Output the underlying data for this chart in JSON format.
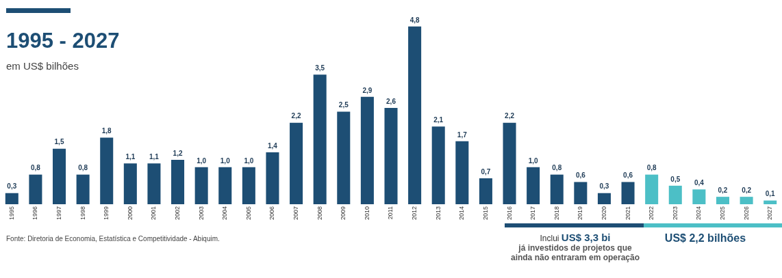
{
  "chart_data": {
    "type": "bar",
    "title": "1995 - 2027",
    "subtitle": "em US$ bilhões",
    "categories": [
      "1995",
      "1996",
      "1997",
      "1998",
      "1999",
      "2000",
      "2001",
      "2002",
      "2003",
      "2004",
      "2005",
      "2006",
      "2007",
      "2008",
      "2009",
      "2010",
      "2011",
      "2012",
      "2013",
      "2014",
      "2015",
      "2016",
      "2017",
      "2018",
      "2019",
      "2020",
      "2021",
      "2022",
      "2023",
      "2024",
      "2025",
      "2026",
      "2027"
    ],
    "values": [
      0.3,
      0.8,
      1.5,
      0.8,
      1.8,
      1.1,
      1.1,
      1.2,
      1.0,
      1.0,
      1.0,
      1.4,
      2.2,
      3.5,
      2.5,
      2.9,
      2.6,
      4.8,
      2.1,
      1.7,
      0.7,
      2.2,
      1.0,
      0.8,
      0.6,
      0.3,
      0.6,
      0.8,
      0.5,
      0.4,
      0.2,
      0.2,
      0.1
    ],
    "value_labels": [
      "0,3",
      "0,8",
      "1,5",
      "0,8",
      "1,8",
      "1,1",
      "1,1",
      "1,2",
      "1,0",
      "1,0",
      "1,0",
      "1,4",
      "2,2",
      "3,5",
      "2,5",
      "2,9",
      "2,6",
      "4,8",
      "2,1",
      "1,7",
      "0,7",
      "2,2",
      "1,0",
      "0,8",
      "0,6",
      "0,3",
      "0,6",
      "0,8",
      "0,5",
      "0,4",
      "0,2",
      "0,2",
      "0,1"
    ],
    "colors": [
      "#1d4e74",
      "#1d4e74",
      "#1d4e74",
      "#1d4e74",
      "#1d4e74",
      "#1d4e74",
      "#1d4e74",
      "#1d4e74",
      "#1d4e74",
      "#1d4e74",
      "#1d4e74",
      "#1d4e74",
      "#1d4e74",
      "#1d4e74",
      "#1d4e74",
      "#1d4e74",
      "#1d4e74",
      "#1d4e74",
      "#1d4e74",
      "#1d4e74",
      "#1d4e74",
      "#1d4e74",
      "#1d4e74",
      "#1d4e74",
      "#1d4e74",
      "#1d4e74",
      "#1d4e74",
      "#4cbfc6",
      "#4cbfc6",
      "#4cbfc6",
      "#4cbfc6",
      "#4cbfc6",
      "#4cbfc6"
    ],
    "annotations": [
      "Fonte: Diretoria de Economia, Estatística e Competitividade - Abiquim.",
      "Inclui",
      "US$ 3,3 bi",
      "já investidos de projetos que ainda não entraram em operação",
      "US$ 2,2 bilhões"
    ],
    "legend": false,
    "grid": false
  }
}
